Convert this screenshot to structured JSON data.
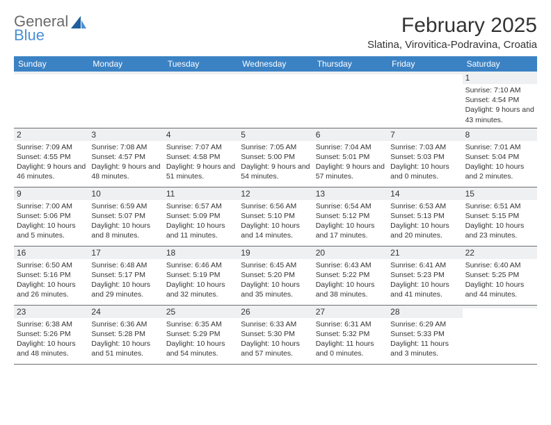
{
  "logo": {
    "general": "General",
    "blue": "Blue"
  },
  "title": "February 2025",
  "location": "Slatina, Virovitica-Podravina, Croatia",
  "colors": {
    "header_bg": "#3b82c4",
    "header_text": "#ffffff",
    "num_row_bg": "#eef0f1",
    "rule": "#6a6d70",
    "logo_gray": "#6b6b6b",
    "logo_blue": "#4a8fd4",
    "body_text": "#333333",
    "page_bg": "#ffffff"
  },
  "fonts": {
    "family": "Arial",
    "title_size_pt": 22,
    "location_size_pt": 11,
    "dayheader_size_pt": 9,
    "cell_size_pt": 8
  },
  "day_names": [
    "Sunday",
    "Monday",
    "Tuesday",
    "Wednesday",
    "Thursday",
    "Friday",
    "Saturday"
  ],
  "weeks": [
    [
      {
        "n": "",
        "sr": "",
        "ss": "",
        "dl": ""
      },
      {
        "n": "",
        "sr": "",
        "ss": "",
        "dl": ""
      },
      {
        "n": "",
        "sr": "",
        "ss": "",
        "dl": ""
      },
      {
        "n": "",
        "sr": "",
        "ss": "",
        "dl": ""
      },
      {
        "n": "",
        "sr": "",
        "ss": "",
        "dl": ""
      },
      {
        "n": "",
        "sr": "",
        "ss": "",
        "dl": ""
      },
      {
        "n": "1",
        "sr": "Sunrise: 7:10 AM",
        "ss": "Sunset: 4:54 PM",
        "dl": "Daylight: 9 hours and 43 minutes."
      }
    ],
    [
      {
        "n": "2",
        "sr": "Sunrise: 7:09 AM",
        "ss": "Sunset: 4:55 PM",
        "dl": "Daylight: 9 hours and 46 minutes."
      },
      {
        "n": "3",
        "sr": "Sunrise: 7:08 AM",
        "ss": "Sunset: 4:57 PM",
        "dl": "Daylight: 9 hours and 48 minutes."
      },
      {
        "n": "4",
        "sr": "Sunrise: 7:07 AM",
        "ss": "Sunset: 4:58 PM",
        "dl": "Daylight: 9 hours and 51 minutes."
      },
      {
        "n": "5",
        "sr": "Sunrise: 7:05 AM",
        "ss": "Sunset: 5:00 PM",
        "dl": "Daylight: 9 hours and 54 minutes."
      },
      {
        "n": "6",
        "sr": "Sunrise: 7:04 AM",
        "ss": "Sunset: 5:01 PM",
        "dl": "Daylight: 9 hours and 57 minutes."
      },
      {
        "n": "7",
        "sr": "Sunrise: 7:03 AM",
        "ss": "Sunset: 5:03 PM",
        "dl": "Daylight: 10 hours and 0 minutes."
      },
      {
        "n": "8",
        "sr": "Sunrise: 7:01 AM",
        "ss": "Sunset: 5:04 PM",
        "dl": "Daylight: 10 hours and 2 minutes."
      }
    ],
    [
      {
        "n": "9",
        "sr": "Sunrise: 7:00 AM",
        "ss": "Sunset: 5:06 PM",
        "dl": "Daylight: 10 hours and 5 minutes."
      },
      {
        "n": "10",
        "sr": "Sunrise: 6:59 AM",
        "ss": "Sunset: 5:07 PM",
        "dl": "Daylight: 10 hours and 8 minutes."
      },
      {
        "n": "11",
        "sr": "Sunrise: 6:57 AM",
        "ss": "Sunset: 5:09 PM",
        "dl": "Daylight: 10 hours and 11 minutes."
      },
      {
        "n": "12",
        "sr": "Sunrise: 6:56 AM",
        "ss": "Sunset: 5:10 PM",
        "dl": "Daylight: 10 hours and 14 minutes."
      },
      {
        "n": "13",
        "sr": "Sunrise: 6:54 AM",
        "ss": "Sunset: 5:12 PM",
        "dl": "Daylight: 10 hours and 17 minutes."
      },
      {
        "n": "14",
        "sr": "Sunrise: 6:53 AM",
        "ss": "Sunset: 5:13 PM",
        "dl": "Daylight: 10 hours and 20 minutes."
      },
      {
        "n": "15",
        "sr": "Sunrise: 6:51 AM",
        "ss": "Sunset: 5:15 PM",
        "dl": "Daylight: 10 hours and 23 minutes."
      }
    ],
    [
      {
        "n": "16",
        "sr": "Sunrise: 6:50 AM",
        "ss": "Sunset: 5:16 PM",
        "dl": "Daylight: 10 hours and 26 minutes."
      },
      {
        "n": "17",
        "sr": "Sunrise: 6:48 AM",
        "ss": "Sunset: 5:17 PM",
        "dl": "Daylight: 10 hours and 29 minutes."
      },
      {
        "n": "18",
        "sr": "Sunrise: 6:46 AM",
        "ss": "Sunset: 5:19 PM",
        "dl": "Daylight: 10 hours and 32 minutes."
      },
      {
        "n": "19",
        "sr": "Sunrise: 6:45 AM",
        "ss": "Sunset: 5:20 PM",
        "dl": "Daylight: 10 hours and 35 minutes."
      },
      {
        "n": "20",
        "sr": "Sunrise: 6:43 AM",
        "ss": "Sunset: 5:22 PM",
        "dl": "Daylight: 10 hours and 38 minutes."
      },
      {
        "n": "21",
        "sr": "Sunrise: 6:41 AM",
        "ss": "Sunset: 5:23 PM",
        "dl": "Daylight: 10 hours and 41 minutes."
      },
      {
        "n": "22",
        "sr": "Sunrise: 6:40 AM",
        "ss": "Sunset: 5:25 PM",
        "dl": "Daylight: 10 hours and 44 minutes."
      }
    ],
    [
      {
        "n": "23",
        "sr": "Sunrise: 6:38 AM",
        "ss": "Sunset: 5:26 PM",
        "dl": "Daylight: 10 hours and 48 minutes."
      },
      {
        "n": "24",
        "sr": "Sunrise: 6:36 AM",
        "ss": "Sunset: 5:28 PM",
        "dl": "Daylight: 10 hours and 51 minutes."
      },
      {
        "n": "25",
        "sr": "Sunrise: 6:35 AM",
        "ss": "Sunset: 5:29 PM",
        "dl": "Daylight: 10 hours and 54 minutes."
      },
      {
        "n": "26",
        "sr": "Sunrise: 6:33 AM",
        "ss": "Sunset: 5:30 PM",
        "dl": "Daylight: 10 hours and 57 minutes."
      },
      {
        "n": "27",
        "sr": "Sunrise: 6:31 AM",
        "ss": "Sunset: 5:32 PM",
        "dl": "Daylight: 11 hours and 0 minutes."
      },
      {
        "n": "28",
        "sr": "Sunrise: 6:29 AM",
        "ss": "Sunset: 5:33 PM",
        "dl": "Daylight: 11 hours and 3 minutes."
      },
      {
        "n": "",
        "sr": "",
        "ss": "",
        "dl": ""
      }
    ]
  ]
}
